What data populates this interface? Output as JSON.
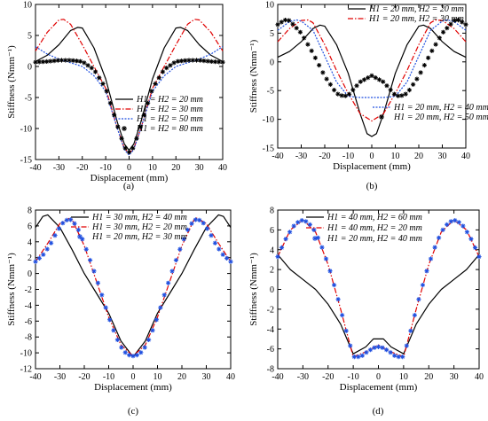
{
  "chart_data": [
    {
      "panel_label": "(a)",
      "type": "line",
      "xlabel": "Displacement (mm)",
      "ylabel": "Stiffness (Nmm⁻¹)",
      "xlim": [
        -40,
        40
      ],
      "ylim": [
        -15,
        10
      ],
      "xticks": [
        "-40",
        "-30",
        "-20",
        "-10",
        "0",
        "10",
        "20",
        "30",
        "40"
      ],
      "yticks": [
        "10",
        "5",
        "0",
        "-5",
        "-10",
        "-15"
      ],
      "grid": false,
      "legend_position": "bottom-right",
      "series": [
        {
          "name": "H1 = H2 = 20 mm",
          "color": "#000000",
          "dash": "solid",
          "marker": "none",
          "x": [
            -40,
            -35,
            -30,
            -25,
            -22,
            -20,
            -15,
            -10,
            -5,
            -2,
            0,
            2,
            5,
            10,
            15,
            20,
            22,
            25,
            30,
            35,
            40
          ],
          "y": [
            0.8,
            1.8,
            3.5,
            5.8,
            6.3,
            6.2,
            3,
            -2,
            -9,
            -12.5,
            -13.5,
            -12.5,
            -9,
            -2,
            3,
            6.2,
            6.3,
            5.8,
            3.5,
            1.8,
            0.8
          ]
        },
        {
          "name": "H1 = H2 = 30 mm",
          "color": "#e00000",
          "dash": "dashdot",
          "marker": "none",
          "x": [
            -40,
            -35,
            -30,
            -28,
            -25,
            -20,
            -15,
            -10,
            -5,
            -2,
            0,
            2,
            5,
            10,
            15,
            20,
            25,
            28,
            30,
            35,
            40
          ],
          "y": [
            2.5,
            5.5,
            7.5,
            7.6,
            6.8,
            3.5,
            0,
            -3.5,
            -10,
            -13.2,
            -14,
            -13.2,
            -10,
            -3.5,
            0,
            3.5,
            6.8,
            7.6,
            7.5,
            5.5,
            2.5
          ]
        },
        {
          "name": "H1 = H2 = 50 mm",
          "color": "#2050e0",
          "dash": "dotted",
          "marker": "none",
          "x": [
            -40,
            -35,
            -30,
            -25,
            -20,
            -15,
            -10,
            -5,
            -2,
            0,
            2,
            5,
            10,
            15,
            20,
            25,
            30,
            35,
            40
          ],
          "y": [
            3.2,
            2,
            1.2,
            0.6,
            0,
            -1.5,
            -4,
            -10,
            -13.4,
            -14.3,
            -13.4,
            -10,
            -4,
            -1.5,
            0,
            0.6,
            1.2,
            2,
            3.2
          ]
        },
        {
          "name": "H1 = H2 = 80 mm",
          "color": "#000000",
          "dash": "none",
          "marker": "star",
          "x": [
            -40,
            -35,
            -30,
            -25,
            -20,
            -15,
            -10,
            -5,
            -2,
            0,
            2,
            5,
            10,
            15,
            20,
            25,
            30,
            35,
            40
          ],
          "y": [
            0.7,
            0.8,
            1,
            1,
            0.8,
            -0.5,
            -3.5,
            -9.5,
            -13,
            -13.8,
            -13,
            -9.5,
            -3.5,
            -0.5,
            0.8,
            1,
            1,
            0.8,
            0.7
          ]
        }
      ]
    },
    {
      "panel_label": "(b)",
      "type": "line",
      "xlabel": "Displacement (mm)",
      "ylabel": "Stiffness (Nmm⁻¹)",
      "xlim": [
        -40,
        40
      ],
      "ylim": [
        -15,
        10
      ],
      "xticks": [
        "-40",
        "-30",
        "-20",
        "-10",
        "0",
        "10",
        "20",
        "30",
        "40"
      ],
      "yticks": [
        "10",
        "5",
        "0",
        "-5",
        "-10",
        "-15"
      ],
      "grid": false,
      "legend_position": "top-right and bottom-right",
      "series": [
        {
          "name": "H1 = 20 mm, H2 = 20 mm",
          "color": "#000000",
          "dash": "solid",
          "marker": "none",
          "x": [
            -40,
            -35,
            -30,
            -25,
            -22,
            -20,
            -15,
            -10,
            -5,
            -2,
            0,
            2,
            5,
            10,
            15,
            20,
            22,
            25,
            30,
            35,
            40
          ],
          "y": [
            0.8,
            1.8,
            3.5,
            5.8,
            6.4,
            6.2,
            3,
            -2,
            -9,
            -12.5,
            -13,
            -12.5,
            -9,
            -2,
            3,
            6.2,
            6.4,
            5.8,
            3.5,
            1.8,
            0.8
          ]
        },
        {
          "name": "H1 = 20 mm, H2 = 30 mm",
          "color": "#e00000",
          "dash": "dashdot",
          "marker": "none",
          "x": [
            -40,
            -35,
            -30,
            -27,
            -25,
            -20,
            -15,
            -10,
            -5,
            0,
            5,
            10,
            15,
            20,
            25,
            27,
            30,
            35,
            40
          ],
          "y": [
            3.5,
            5.8,
            7.2,
            7.3,
            6.8,
            3,
            -1.5,
            -5.5,
            -9,
            -10.3,
            -9,
            -5.5,
            -1.5,
            3,
            6.8,
            7.3,
            7.2,
            5.8,
            3.5
          ]
        },
        {
          "name": "H1 = 20 mm, H2 = 40 mm",
          "color": "#2050e0",
          "dash": "dotted",
          "marker": "none",
          "x": [
            -40,
            -35,
            -32,
            -30,
            -25,
            -20,
            -15,
            -10,
            -5,
            0,
            5,
            10,
            15,
            20,
            25,
            30,
            32,
            35,
            40
          ],
          "y": [
            5.5,
            7,
            7.3,
            7.1,
            5.5,
            1,
            -3.5,
            -6,
            -6.2,
            -6.2,
            -6.2,
            -6,
            -3.5,
            1,
            5.5,
            7.1,
            7.3,
            7,
            5.5
          ]
        },
        {
          "name": "H1 = 20 mm, H2 = 50 mm",
          "color": "#000000",
          "dash": "none",
          "marker": "star",
          "x": [
            -40,
            -37,
            -35,
            -30,
            -25,
            -20,
            -15,
            -12,
            -10,
            -5,
            0,
            5,
            10,
            12,
            15,
            20,
            25,
            30,
            35,
            37,
            40
          ],
          "y": [
            6.5,
            7.3,
            7.2,
            5,
            1.5,
            -2.5,
            -5.5,
            -6,
            -5.8,
            -3.5,
            -2.4,
            -3.5,
            -5.8,
            -6,
            -5.5,
            -2.5,
            1.5,
            5,
            7.2,
            7.3,
            6.5
          ]
        }
      ]
    },
    {
      "panel_label": "(c)",
      "type": "line",
      "xlabel": "Displacement (mm)",
      "ylabel": "Stiffness (Nmm⁻¹)",
      "xlim": [
        -40,
        40
      ],
      "ylim": [
        -12,
        8
      ],
      "xticks": [
        "-40",
        "-30",
        "-20",
        "-10",
        "0",
        "10",
        "20",
        "30",
        "40"
      ],
      "yticks": [
        "8",
        "6",
        "4",
        "2",
        "0",
        "-2",
        "-4",
        "-6",
        "-8",
        "-10",
        "-12"
      ],
      "grid": false,
      "legend_position": "top-center",
      "series": [
        {
          "name": "H1 = 30 mm, H2 = 40 mm",
          "color": "#000000",
          "dash": "solid",
          "marker": "none",
          "x": [
            -40,
            -37,
            -35,
            -30,
            -25,
            -20,
            -15,
            -10,
            -5,
            0,
            5,
            10,
            15,
            20,
            25,
            30,
            35,
            37,
            40
          ],
          "y": [
            5.8,
            7.2,
            7.4,
            5.8,
            3,
            0,
            -2.5,
            -5,
            -8.5,
            -10.5,
            -8.5,
            -5,
            -2.5,
            0,
            3,
            5.8,
            7.4,
            7.2,
            5.8
          ]
        },
        {
          "name": "H1 = 30 mm, H2 = 20 mm",
          "color": "#e00000",
          "dash": "dashdot",
          "marker": "none",
          "x": [
            -40,
            -35,
            -30,
            -26,
            -25,
            -20,
            -15,
            -10,
            -5,
            0,
            5,
            10,
            15,
            20,
            25,
            26,
            30,
            35,
            40
          ],
          "y": [
            1.5,
            3.8,
            6.3,
            7,
            6.8,
            3.5,
            -1,
            -5.5,
            -9,
            -10.4,
            -9,
            -5.5,
            -1,
            3.5,
            6.8,
            7,
            6.3,
            3.8,
            1.5
          ]
        },
        {
          "name": "H1 = 20 mm, H2 = 30 mm",
          "color": "#2050e0",
          "dash": "none",
          "marker": "star",
          "x": [
            -40,
            -37,
            -34,
            -31,
            -28,
            -25,
            -22,
            -19,
            -16,
            -13,
            -10,
            -7,
            -4,
            -1,
            0,
            1,
            4,
            7,
            10,
            13,
            16,
            19,
            22,
            25,
            28,
            31,
            34,
            37,
            40
          ],
          "y": [
            1.5,
            2.3,
            3.6,
            5.4,
            6.7,
            6.8,
            5.3,
            2.9,
            0.3,
            -2.5,
            -5.5,
            -8,
            -9.8,
            -10.4,
            -10.4,
            -10.4,
            -9.8,
            -8,
            -5.5,
            -2.5,
            0.3,
            2.9,
            5.3,
            6.8,
            6.7,
            5.4,
            3.6,
            2.3,
            1.5
          ]
        }
      ]
    },
    {
      "panel_label": "(d)",
      "type": "line",
      "xlabel": "Displacement (mm)",
      "ylabel": "Stiffness (Nmm⁻¹)",
      "xlim": [
        -40,
        40
      ],
      "ylim": [
        -8,
        8
      ],
      "xticks": [
        "-40",
        "-30",
        "-20",
        "-10",
        "0",
        "10",
        "20",
        "30",
        "40"
      ],
      "yticks": [
        "8",
        "6",
        "4",
        "2",
        "0",
        "-2",
        "-4",
        "-6",
        "-8"
      ],
      "grid": false,
      "legend_position": "top-right",
      "series": [
        {
          "name": "H1 = 40 mm, H2 = 60 mm",
          "color": "#000000",
          "dash": "solid",
          "marker": "none",
          "x": [
            -40,
            -35,
            -30,
            -25,
            -20,
            -15,
            -10,
            -5,
            -2,
            0,
            2,
            5,
            10,
            15,
            20,
            25,
            30,
            35,
            40
          ],
          "y": [
            3.5,
            2,
            1,
            0,
            -1.5,
            -3.5,
            -6.5,
            -5.8,
            -5,
            -5,
            -5,
            -5.8,
            -6.5,
            -3.5,
            -1.5,
            0,
            1,
            2,
            3.5
          ]
        },
        {
          "name": "H1 = 40 mm, H2 = 20 mm",
          "color": "#e00000",
          "dash": "dashdot",
          "marker": "none",
          "x": [
            -40,
            -35,
            -30,
            -25,
            -20,
            -15,
            -10,
            -5,
            0,
            5,
            10,
            15,
            20,
            25,
            30,
            35,
            40
          ],
          "y": [
            3.3,
            6,
            7,
            5.8,
            2.5,
            -2,
            -6.8,
            -6.3,
            -5.6,
            -6.3,
            -6.8,
            -2,
            2.5,
            5.8,
            7,
            6,
            3.3
          ]
        },
        {
          "name": "H1 = 20 mm, H2 = 40 mm",
          "color": "#2050e0",
          "dash": "none",
          "marker": "star",
          "x": [
            -40,
            -37,
            -34,
            -31,
            -28,
            -25,
            -22,
            -19,
            -16,
            -13,
            -10,
            -7,
            -4,
            -1,
            0,
            1,
            4,
            7,
            10,
            13,
            16,
            19,
            22,
            25,
            28,
            31,
            34,
            37,
            40
          ],
          "y": [
            3.3,
            5,
            6.3,
            7,
            6.8,
            5.8,
            4,
            1.7,
            -1,
            -4,
            -6.8,
            -6.8,
            -6.2,
            -5.8,
            -5.8,
            -5.8,
            -6.2,
            -6.8,
            -6.8,
            -4,
            -1,
            1.7,
            4,
            5.8,
            6.8,
            7,
            6.3,
            5,
            3.3
          ]
        }
      ]
    }
  ]
}
